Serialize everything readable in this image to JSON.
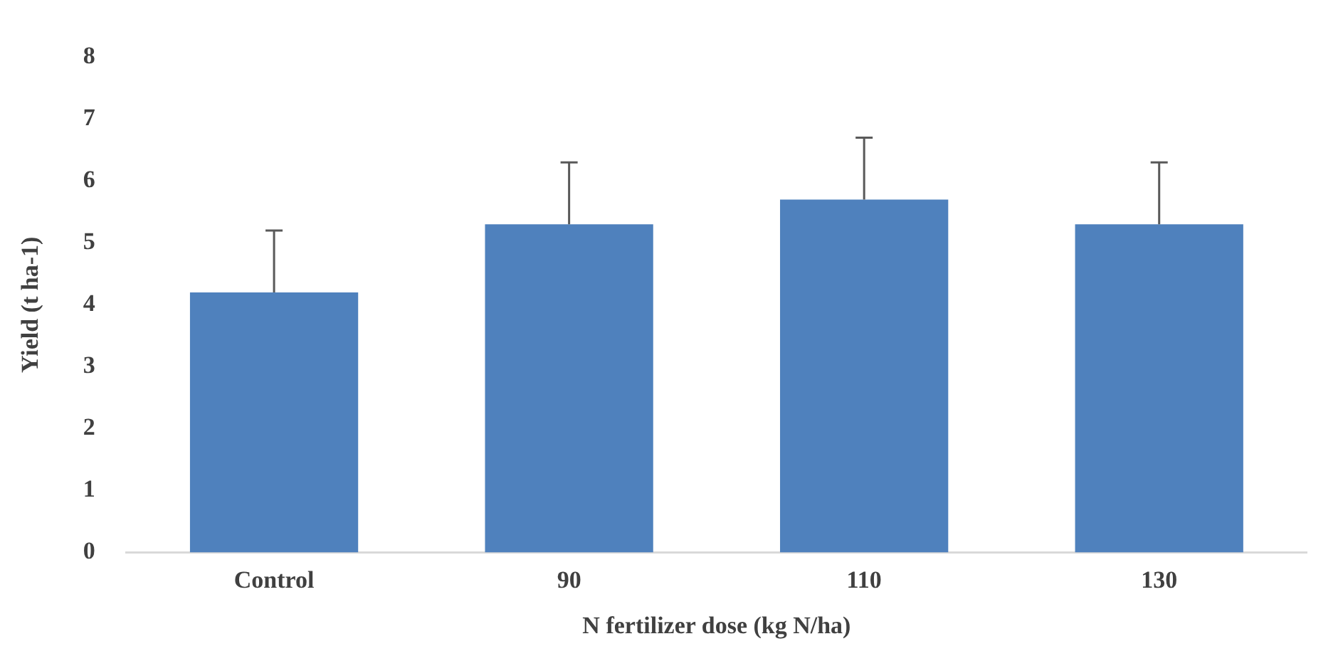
{
  "chart_data": {
    "type": "bar",
    "xlabel": "N fertilizer dose (kg N/ha)",
    "ylabel": "Yield (t ha-1)",
    "categories": [
      "Control",
      "90",
      "110",
      "130"
    ],
    "values": [
      4.2,
      5.3,
      5.7,
      5.3
    ],
    "errors": [
      [
        4.2,
        5.2
      ],
      [
        5.3,
        6.3
      ],
      [
        5.7,
        6.7
      ],
      [
        5.3,
        6.3
      ]
    ],
    "color": "#4f81bd",
    "ylim": [
      0,
      8
    ],
    "yticks": [
      0,
      1,
      2,
      3,
      4,
      5,
      6,
      7,
      8
    ],
    "grid": false,
    "legend": false
  }
}
